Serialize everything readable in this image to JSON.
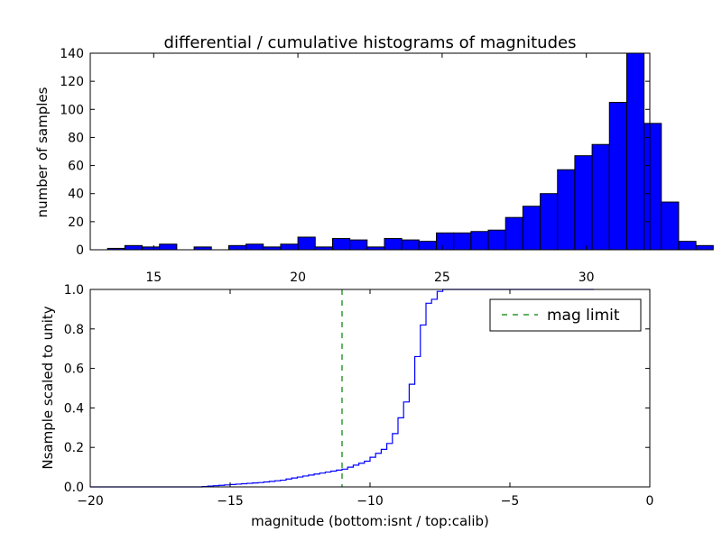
{
  "chart_data": [
    {
      "type": "bar",
      "title": "differential / cumulative histograms of magnitudes",
      "xlabel": "",
      "ylabel": "number of samples",
      "xlim": [
        12.8,
        32.2
      ],
      "ylim": [
        0,
        140
      ],
      "xticks": [
        15,
        20,
        25,
        30
      ],
      "xtick_labels": [
        "15",
        "20",
        "25",
        "30"
      ],
      "yticks": [
        0,
        20,
        40,
        60,
        80,
        100,
        120,
        140
      ],
      "ytick_labels": [
        "0",
        "20",
        "40",
        "60",
        "80",
        "100",
        "120",
        "140"
      ],
      "bin_width": 0.6,
      "bin_start": 12.8,
      "bar_color": "#0000ff",
      "values": [
        0,
        1,
        3,
        2,
        4,
        0,
        2,
        0,
        3,
        4,
        2,
        4,
        9,
        2,
        8,
        7,
        2,
        8,
        7,
        6,
        12,
        12,
        13,
        14,
        23,
        31,
        40,
        57,
        67,
        75,
        105,
        140,
        90,
        34,
        6,
        3
      ]
    },
    {
      "type": "line",
      "style": "step",
      "xlabel": "magnitude (bottom:isnt / top:calib)",
      "ylabel": "Nsample scaled to unity",
      "xlim": [
        -20,
        0
      ],
      "ylim": [
        0,
        1.0
      ],
      "xticks": [
        -20,
        -15,
        -10,
        -5,
        0
      ],
      "xtick_labels": [
        "−20",
        "−15",
        "−10",
        "−5",
        "0"
      ],
      "yticks": [
        0,
        0.2,
        0.4,
        0.6,
        0.8,
        1.0
      ],
      "ytick_labels": [
        "0.0",
        "0.2",
        "0.4",
        "0.6",
        "0.8",
        "1.0"
      ],
      "line_color": "#0000ff",
      "x": [
        -20,
        -16,
        -15.8,
        -15.6,
        -15.4,
        -15.2,
        -15.0,
        -14.8,
        -14.6,
        -14.4,
        -14.2,
        -14.0,
        -13.8,
        -13.6,
        -13.4,
        -13.2,
        -13.0,
        -12.8,
        -12.6,
        -12.4,
        -12.2,
        -12.0,
        -11.8,
        -11.6,
        -11.4,
        -11.2,
        -11.0,
        -10.8,
        -10.6,
        -10.4,
        -10.2,
        -10.0,
        -9.8,
        -9.6,
        -9.4,
        -9.2,
        -9.0,
        -8.8,
        -8.6,
        -8.4,
        -8.2,
        -8.0,
        -7.8,
        -7.6,
        -7.4
      ],
      "y": [
        0.0,
        0.002,
        0.004,
        0.006,
        0.008,
        0.01,
        0.012,
        0.014,
        0.016,
        0.018,
        0.02,
        0.022,
        0.025,
        0.028,
        0.031,
        0.034,
        0.04,
        0.045,
        0.05,
        0.055,
        0.06,
        0.065,
        0.07,
        0.075,
        0.08,
        0.085,
        0.09,
        0.1,
        0.11,
        0.12,
        0.13,
        0.15,
        0.17,
        0.19,
        0.22,
        0.27,
        0.35,
        0.43,
        0.52,
        0.66,
        0.82,
        0.93,
        0.95,
        0.99,
        1.0
      ],
      "reference_line": {
        "x": -11,
        "color": "#008000",
        "style": "dashed",
        "label": "mag limit"
      },
      "legend_position": "top-right"
    }
  ]
}
